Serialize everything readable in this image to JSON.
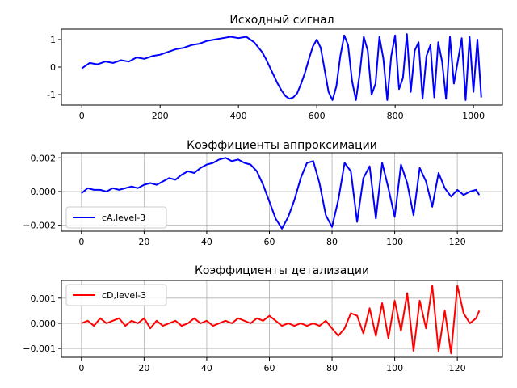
{
  "chart_data": [
    {
      "type": "line",
      "title": "Исходный сигнал",
      "xlabel": "",
      "ylabel": "",
      "xlim": [
        -52,
        1074
      ],
      "ylim": [
        -1.38,
        1.38
      ],
      "xticks": [
        0,
        200,
        400,
        600,
        800,
        1000
      ],
      "yticks": [
        -1,
        0,
        1
      ],
      "grid": false,
      "legend": null,
      "series": [
        {
          "color": "#0000ff",
          "x": [
            0,
            20,
            40,
            60,
            80,
            100,
            120,
            140,
            160,
            180,
            200,
            220,
            240,
            260,
            280,
            300,
            320,
            340,
            360,
            380,
            400,
            420,
            440,
            460,
            470,
            480,
            490,
            500,
            510,
            520,
            530,
            540,
            550,
            560,
            570,
            580,
            590,
            600,
            610,
            620,
            630,
            640,
            650,
            660,
            670,
            680,
            690,
            700,
            710,
            720,
            730,
            740,
            750,
            760,
            770,
            780,
            790,
            800,
            810,
            820,
            830,
            840,
            850,
            860,
            870,
            880,
            890,
            900,
            910,
            920,
            930,
            940,
            950,
            960,
            970,
            980,
            990,
            1000,
            1010,
            1020
          ],
          "y": [
            -0.05,
            0.15,
            0.1,
            0.2,
            0.15,
            0.25,
            0.2,
            0.35,
            0.3,
            0.4,
            0.45,
            0.55,
            0.65,
            0.7,
            0.8,
            0.85,
            0.95,
            1.0,
            1.05,
            1.1,
            1.05,
            1.1,
            0.9,
            0.55,
            0.3,
            0.0,
            -0.3,
            -0.6,
            -0.85,
            -1.05,
            -1.15,
            -1.1,
            -0.95,
            -0.6,
            -0.2,
            0.3,
            0.75,
            1.0,
            0.7,
            -0.1,
            -0.9,
            -1.2,
            -0.7,
            0.4,
            1.15,
            0.8,
            -0.5,
            -1.2,
            -0.2,
            1.1,
            0.6,
            -1.0,
            -0.6,
            1.1,
            0.3,
            -1.2,
            0.4,
            1.15,
            -0.8,
            -0.4,
            1.2,
            -0.9,
            0.6,
            0.9,
            -1.15,
            0.4,
            0.8,
            -1.1,
            0.9,
            0.2,
            -1.15,
            1.1,
            -0.6,
            0.2,
            1.05,
            -1.2,
            1.1,
            -0.9,
            1.0,
            -1.1
          ]
        }
      ]
    },
    {
      "type": "line",
      "title": "Коэффициенты аппроксимации",
      "xlabel": "",
      "ylabel": "",
      "xlim": [
        -6.4,
        134.4
      ],
      "ylim": [
        -0.00235,
        0.0023
      ],
      "xticks": [
        0,
        20,
        40,
        60,
        80,
        100,
        120
      ],
      "yticks": [
        -0.002,
        0.0,
        0.002
      ],
      "ytick_labels": [
        "−0.002",
        "0.000",
        "0.002"
      ],
      "grid": true,
      "legend": "lower-left",
      "series": [
        {
          "name": "cA,level-3",
          "color": "#0000ff",
          "x": [
            0,
            2,
            4,
            6,
            8,
            10,
            12,
            14,
            16,
            18,
            20,
            22,
            24,
            26,
            28,
            30,
            32,
            34,
            36,
            38,
            40,
            42,
            44,
            46,
            48,
            50,
            52,
            54,
            56,
            58,
            60,
            62,
            64,
            66,
            68,
            70,
            72,
            74,
            76,
            78,
            80,
            82,
            84,
            86,
            88,
            90,
            92,
            94,
            96,
            98,
            100,
            102,
            104,
            106,
            108,
            110,
            112,
            114,
            116,
            118,
            120,
            122,
            124,
            126,
            127
          ],
          "y": [
            -0.0001,
            0.0002,
            0.0001,
            0.0001,
            0.0,
            0.0002,
            0.0001,
            0.0002,
            0.0003,
            0.0002,
            0.0004,
            0.0005,
            0.0004,
            0.0006,
            0.0008,
            0.0007,
            0.001,
            0.0012,
            0.0011,
            0.0014,
            0.0016,
            0.0017,
            0.0019,
            0.002,
            0.0018,
            0.0019,
            0.0017,
            0.0016,
            0.0012,
            0.0004,
            -0.0006,
            -0.0016,
            -0.0022,
            -0.0015,
            -0.0005,
            0.0008,
            0.0017,
            0.0018,
            0.0005,
            -0.0014,
            -0.0021,
            -0.0005,
            0.0017,
            0.0012,
            -0.0018,
            0.0008,
            0.0015,
            -0.0016,
            0.0017,
            0.0002,
            -0.0015,
            0.0016,
            0.0005,
            -0.0014,
            0.0014,
            0.0006,
            -0.0009,
            0.0011,
            0.0002,
            -0.0003,
            0.0001,
            -0.0002,
            0.0,
            0.0001,
            -0.0002
          ]
        }
      ]
    },
    {
      "type": "line",
      "title": "Коэффициенты детализации",
      "xlabel": "",
      "ylabel": "",
      "xlim": [
        -6.4,
        134.4
      ],
      "ylim": [
        -0.00135,
        0.0017
      ],
      "xticks": [
        0,
        20,
        40,
        60,
        80,
        100,
        120
      ],
      "yticks": [
        -0.001,
        0.0,
        0.001
      ],
      "ytick_labels": [
        "−0.001",
        "0.000",
        "0.001"
      ],
      "grid": true,
      "legend": "upper-left",
      "series": [
        {
          "name": "cD,level-3",
          "color": "#ff0000",
          "x": [
            0,
            2,
            4,
            6,
            8,
            10,
            12,
            14,
            16,
            18,
            20,
            22,
            24,
            26,
            28,
            30,
            32,
            34,
            36,
            38,
            40,
            42,
            44,
            46,
            48,
            50,
            52,
            54,
            56,
            58,
            60,
            62,
            64,
            66,
            68,
            70,
            72,
            74,
            76,
            78,
            80,
            82,
            84,
            86,
            88,
            90,
            92,
            94,
            96,
            98,
            100,
            102,
            104,
            106,
            108,
            110,
            112,
            114,
            116,
            118,
            120,
            122,
            124,
            126,
            127
          ],
          "y": [
            0.0,
            0.0001,
            -0.0001,
            0.0002,
            0.0,
            0.0001,
            0.0002,
            -0.0001,
            0.0001,
            0.0,
            0.0002,
            -0.0002,
            0.0001,
            -0.0001,
            0.0,
            0.0001,
            -0.0001,
            0.0,
            0.0002,
            0.0,
            0.0001,
            -0.0001,
            0.0,
            0.0001,
            0.0,
            0.0002,
            0.0001,
            0.0,
            0.0002,
            0.0001,
            0.0003,
            0.0001,
            -0.0001,
            0.0,
            -0.0001,
            0.0,
            -0.0001,
            0.0,
            -0.0001,
            0.0001,
            -0.0002,
            -0.0005,
            -0.0002,
            0.0004,
            0.0003,
            -0.0004,
            0.0006,
            -0.0005,
            0.0008,
            -0.0006,
            0.0009,
            -0.0003,
            0.0012,
            -0.0011,
            0.0009,
            -0.0002,
            0.0015,
            -0.0011,
            0.0005,
            -0.0012,
            0.0015,
            0.0004,
            0.0,
            0.0002,
            0.0005
          ]
        }
      ]
    }
  ]
}
